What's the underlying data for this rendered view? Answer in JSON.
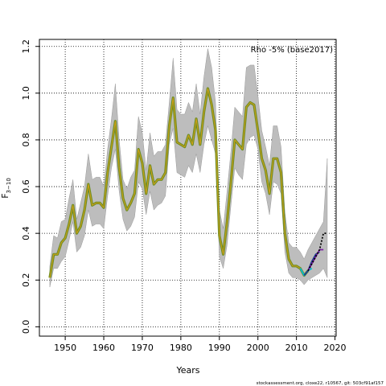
{
  "chart_data": {
    "type": "line",
    "title": "",
    "xlabel": "Years",
    "ylabel": "F",
    "ylabel_subscript": "3−10",
    "xlim": [
      1943.3,
      2020.3
    ],
    "ylim": [
      -0.04,
      1.23
    ],
    "xticks": [
      1950,
      1960,
      1970,
      1980,
      1990,
      2000,
      2010,
      2020
    ],
    "yticks": [
      "0.0",
      "0.2",
      "0.4",
      "0.6",
      "0.8",
      "1.0",
      "1.2"
    ],
    "grid": true,
    "annotation": "Rho -5% (base2017)",
    "footer": "stockassessment.org, cloxe22, r10567, git: 503cf91af157",
    "colors": {
      "band": "#bdbdbd",
      "band_edge": "#9a9a9a",
      "main_outer": "#6b8e23",
      "main_inner": "#d4a017",
      "grid": "#000000"
    },
    "confidence_band": {
      "x": [
        1946,
        1947,
        1948,
        1949,
        1950,
        1951,
        1952,
        1953,
        1954,
        1955,
        1956,
        1957,
        1958,
        1959,
        1960,
        1961,
        1962,
        1963,
        1964,
        1965,
        1966,
        1967,
        1968,
        1969,
        1970,
        1971,
        1972,
        1973,
        1974,
        1975,
        1976,
        1977,
        1978,
        1979,
        1980,
        1981,
        1982,
        1983,
        1984,
        1985,
        1986,
        1987,
        1988,
        1989,
        1990,
        1991,
        1992,
        1993,
        1994,
        1995,
        1996,
        1997,
        1998,
        1999,
        2000,
        2001,
        2002,
        2003,
        2004,
        2005,
        2006,
        2007,
        2008,
        2009,
        2010,
        2011,
        2012,
        2013,
        2014,
        2015,
        2016,
        2017,
        2018
      ],
      "upper": [
        0.26,
        0.39,
        0.38,
        0.45,
        0.46,
        0.55,
        0.63,
        0.46,
        0.53,
        0.6,
        0.74,
        0.63,
        0.64,
        0.64,
        0.6,
        0.76,
        0.89,
        1.04,
        0.8,
        0.63,
        0.59,
        0.64,
        0.67,
        0.9,
        0.83,
        0.67,
        0.83,
        0.73,
        0.75,
        0.75,
        0.78,
        0.96,
        1.15,
        0.93,
        0.91,
        0.91,
        0.96,
        0.92,
        1.04,
        0.91,
        1.07,
        1.19,
        1.11,
        0.96,
        0.5,
        0.42,
        0.58,
        0.75,
        0.94,
        0.92,
        0.9,
        1.11,
        1.12,
        1.12,
        0.99,
        0.84,
        0.77,
        0.69,
        0.86,
        0.86,
        0.77,
        0.49,
        0.36,
        0.34,
        0.34,
        0.32,
        0.29,
        0.33,
        0.36,
        0.39,
        0.42,
        0.45,
        0.72
      ],
      "lower": [
        0.17,
        0.25,
        0.25,
        0.28,
        0.3,
        0.37,
        0.45,
        0.32,
        0.34,
        0.39,
        0.5,
        0.43,
        0.44,
        0.44,
        0.42,
        0.56,
        0.68,
        0.76,
        0.58,
        0.46,
        0.41,
        0.43,
        0.47,
        0.62,
        0.59,
        0.48,
        0.58,
        0.5,
        0.52,
        0.53,
        0.56,
        0.78,
        0.85,
        0.66,
        0.65,
        0.64,
        0.69,
        0.66,
        0.74,
        0.66,
        0.78,
        0.86,
        0.8,
        0.74,
        0.3,
        0.25,
        0.35,
        0.52,
        0.68,
        0.65,
        0.63,
        0.78,
        0.81,
        0.82,
        0.76,
        0.62,
        0.57,
        0.48,
        0.62,
        0.61,
        0.57,
        0.32,
        0.23,
        0.21,
        0.21,
        0.2,
        0.18,
        0.2,
        0.21,
        0.22,
        0.23,
        0.25,
        0.21
      ]
    },
    "series": [
      {
        "color": "#6b8e23",
        "x": [
          1946,
          1947,
          1948,
          1949,
          1950,
          1951,
          1952,
          1953,
          1954,
          1955,
          1956,
          1957,
          1958,
          1959,
          1960,
          1961,
          1962,
          1963,
          1964,
          1965,
          1966,
          1967,
          1968,
          1969,
          1970,
          1971,
          1972,
          1973,
          1974,
          1975,
          1976,
          1977,
          1978,
          1979,
          1980,
          1981,
          1982,
          1983,
          1984,
          1985,
          1986,
          1987,
          1988,
          1989,
          1990,
          1991,
          1992,
          1993,
          1994,
          1995,
          1996,
          1997,
          1998,
          1999,
          2000,
          2001,
          2002,
          2003,
          2004,
          2005,
          2006,
          2007,
          2008,
          2009,
          2010,
          2011,
          2012,
          2013
        ],
        "values": [
          0.21,
          0.31,
          0.31,
          0.36,
          0.38,
          0.44,
          0.52,
          0.4,
          0.43,
          0.5,
          0.61,
          0.52,
          0.53,
          0.53,
          0.51,
          0.66,
          0.77,
          0.88,
          0.68,
          0.55,
          0.5,
          0.53,
          0.57,
          0.76,
          0.7,
          0.57,
          0.69,
          0.61,
          0.63,
          0.63,
          0.66,
          0.86,
          0.98,
          0.79,
          0.78,
          0.77,
          0.82,
          0.78,
          0.89,
          0.78,
          0.92,
          1.02,
          0.95,
          0.84,
          0.39,
          0.31,
          0.45,
          0.62,
          0.8,
          0.78,
          0.76,
          0.94,
          0.96,
          0.95,
          0.84,
          0.72,
          0.67,
          0.57,
          0.72,
          0.72,
          0.66,
          0.4,
          0.29,
          0.26,
          0.26,
          0.25,
          0.22,
          0.24
        ]
      },
      {
        "color": "#00bcd4",
        "x": [
          2011,
          2012,
          2013,
          2014
        ],
        "values": [
          0.25,
          0.22,
          0.24,
          0.25
        ]
      },
      {
        "color": "#1f3a93",
        "x": [
          2012,
          2013,
          2014,
          2015,
          2016
        ],
        "values": [
          0.22,
          0.24,
          0.28,
          0.31,
          0.32
        ]
      },
      {
        "color": "#7b1fa2",
        "x": [
          2013,
          2014,
          2015,
          2016,
          2017
        ],
        "values": [
          0.24,
          0.27,
          0.3,
          0.33,
          0.33
        ]
      },
      {
        "color": "#000000",
        "dashed": true,
        "x": [
          2013,
          2014,
          2015,
          2016,
          2017,
          2018
        ],
        "values": [
          0.24,
          0.27,
          0.3,
          0.33,
          0.4,
          0.4
        ]
      }
    ]
  }
}
